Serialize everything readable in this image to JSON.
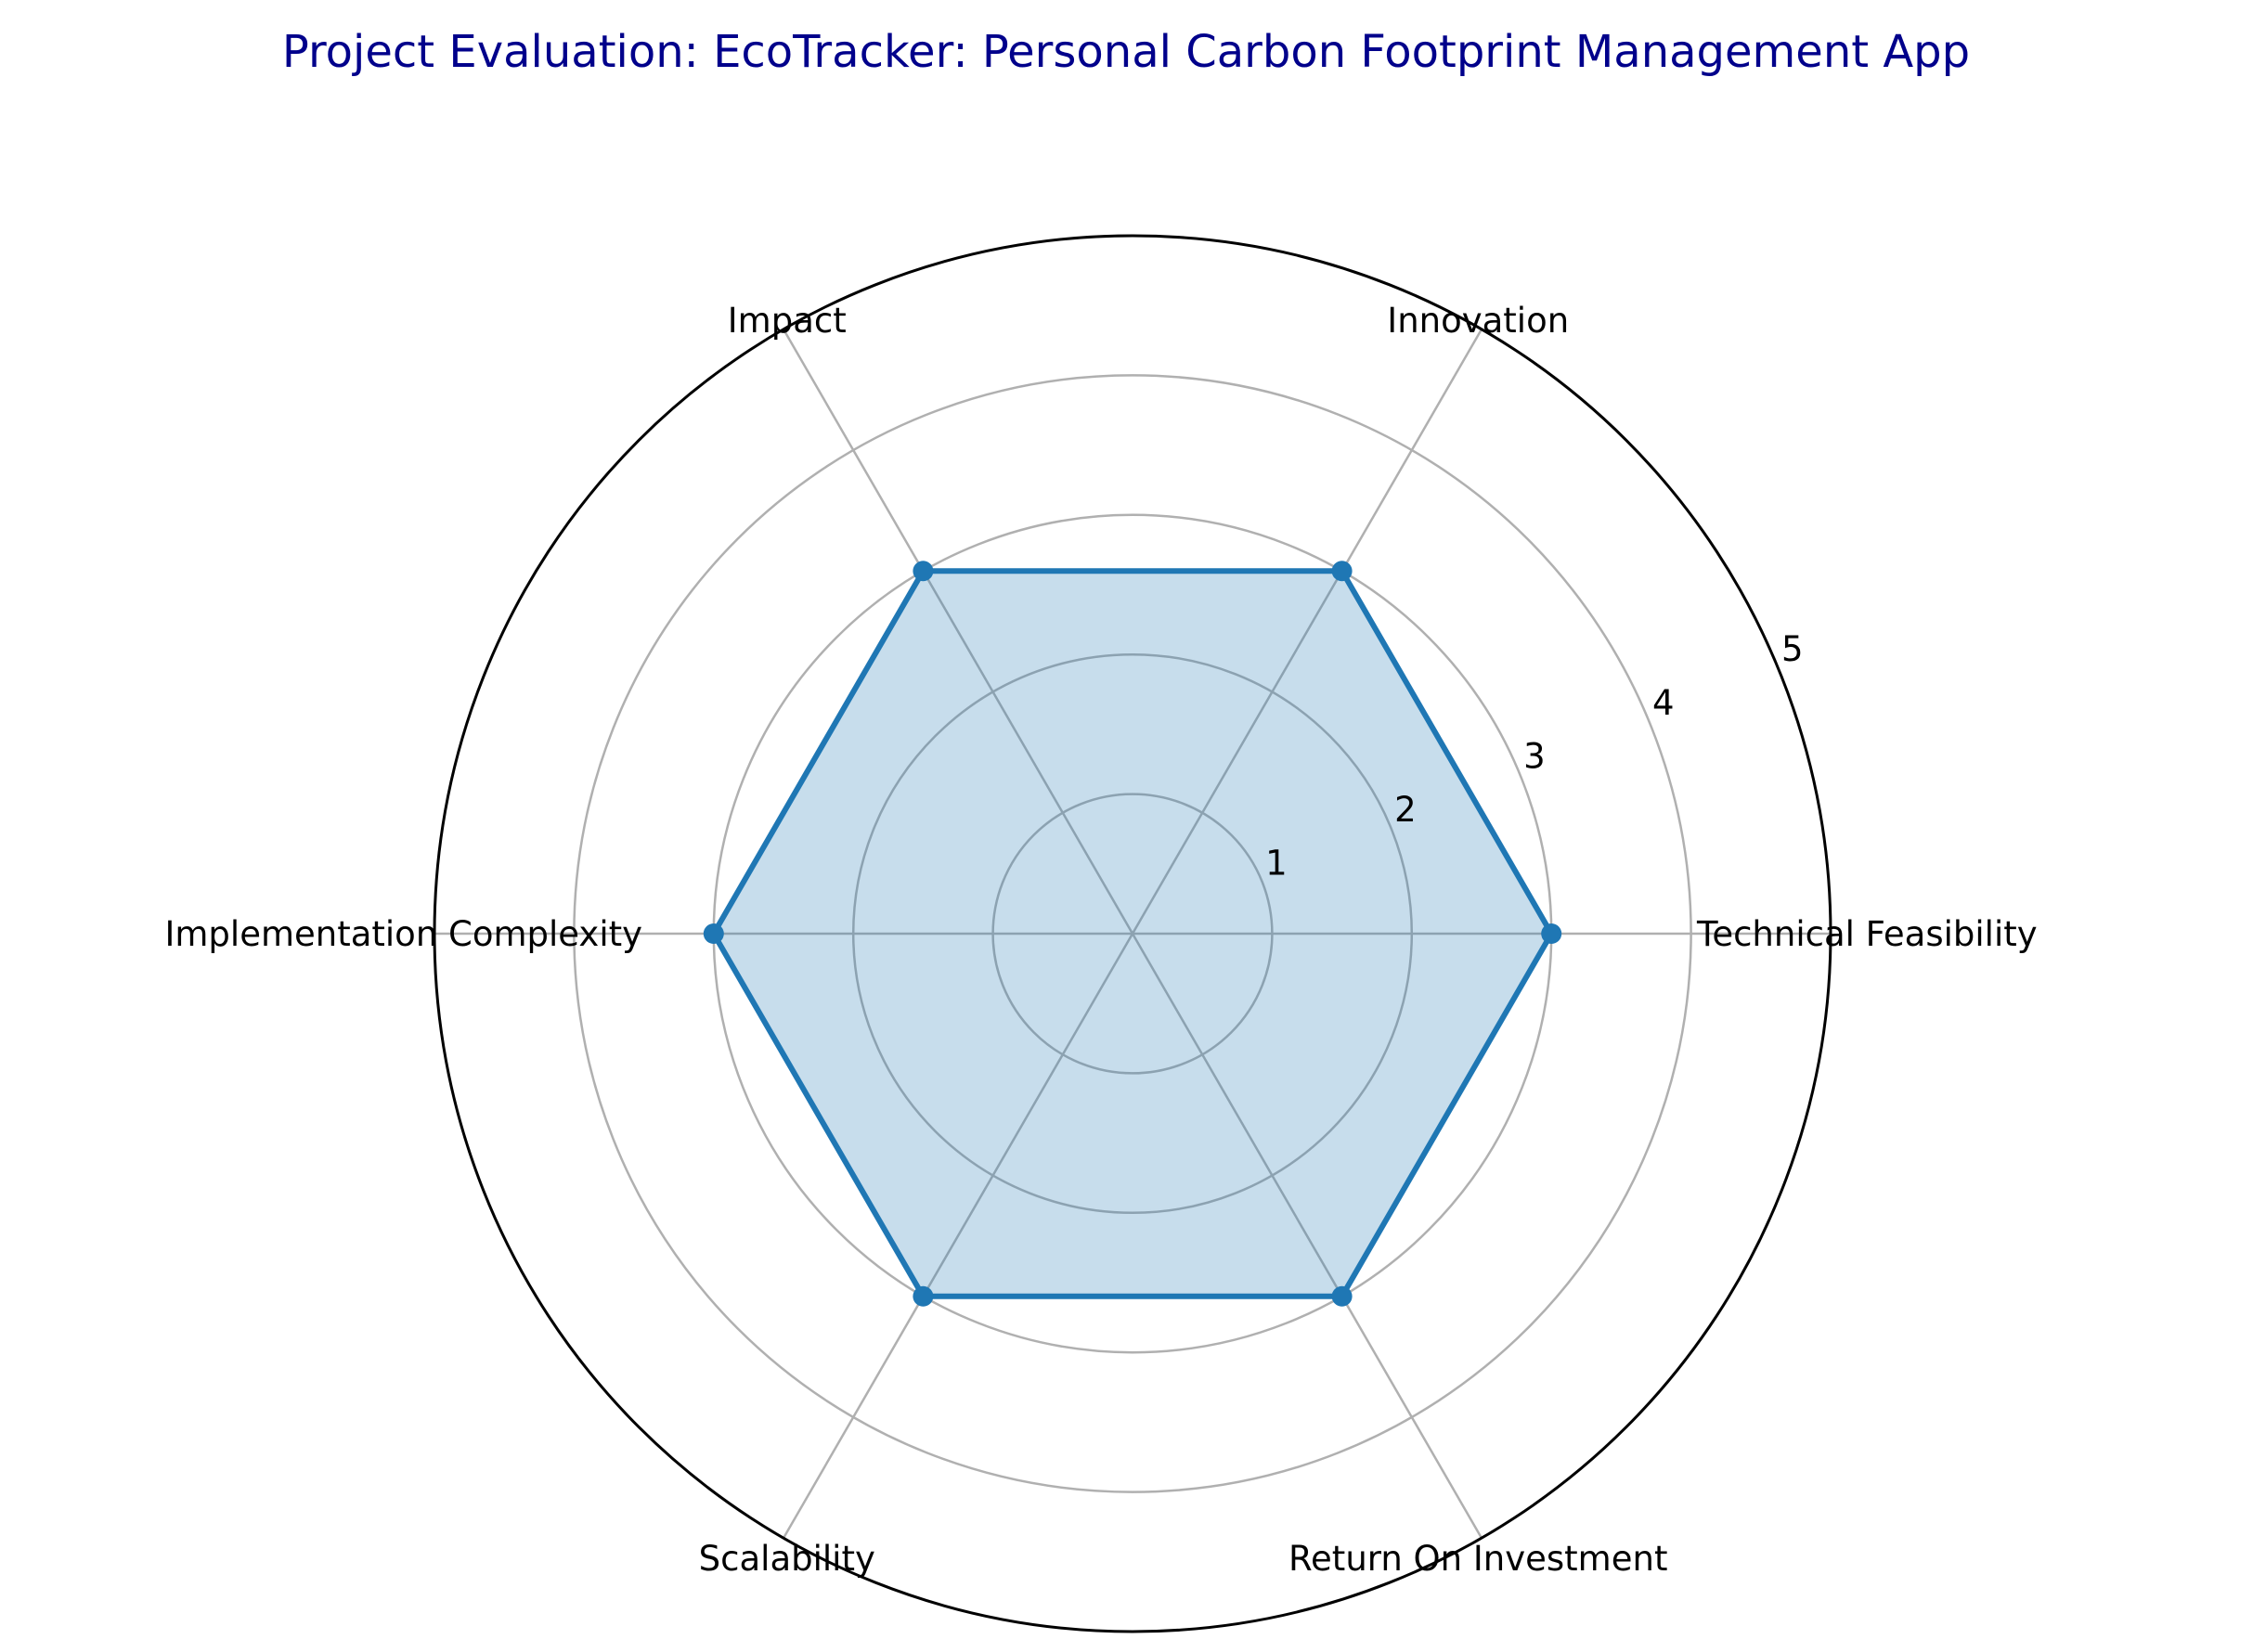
{
  "chart_data": {
    "type": "radar",
    "title": "Project Evaluation: EcoTracker: Personal Carbon Footprint Management App",
    "categories": [
      "Technical Feasibility",
      "Innovation",
      "Impact",
      "Implementation Complexity",
      "Scalability",
      "Return On Investment"
    ],
    "series": [
      {
        "values": [
          3,
          3,
          3,
          3,
          3,
          3
        ]
      }
    ],
    "rlim": [
      0,
      5
    ],
    "rticks": [
      1,
      2,
      3,
      4,
      5
    ],
    "grid": true,
    "colors": {
      "line": "#1f77b4",
      "fill": "#1f77b4",
      "title": "#00008b",
      "grid": "#b0b0b0"
    }
  }
}
